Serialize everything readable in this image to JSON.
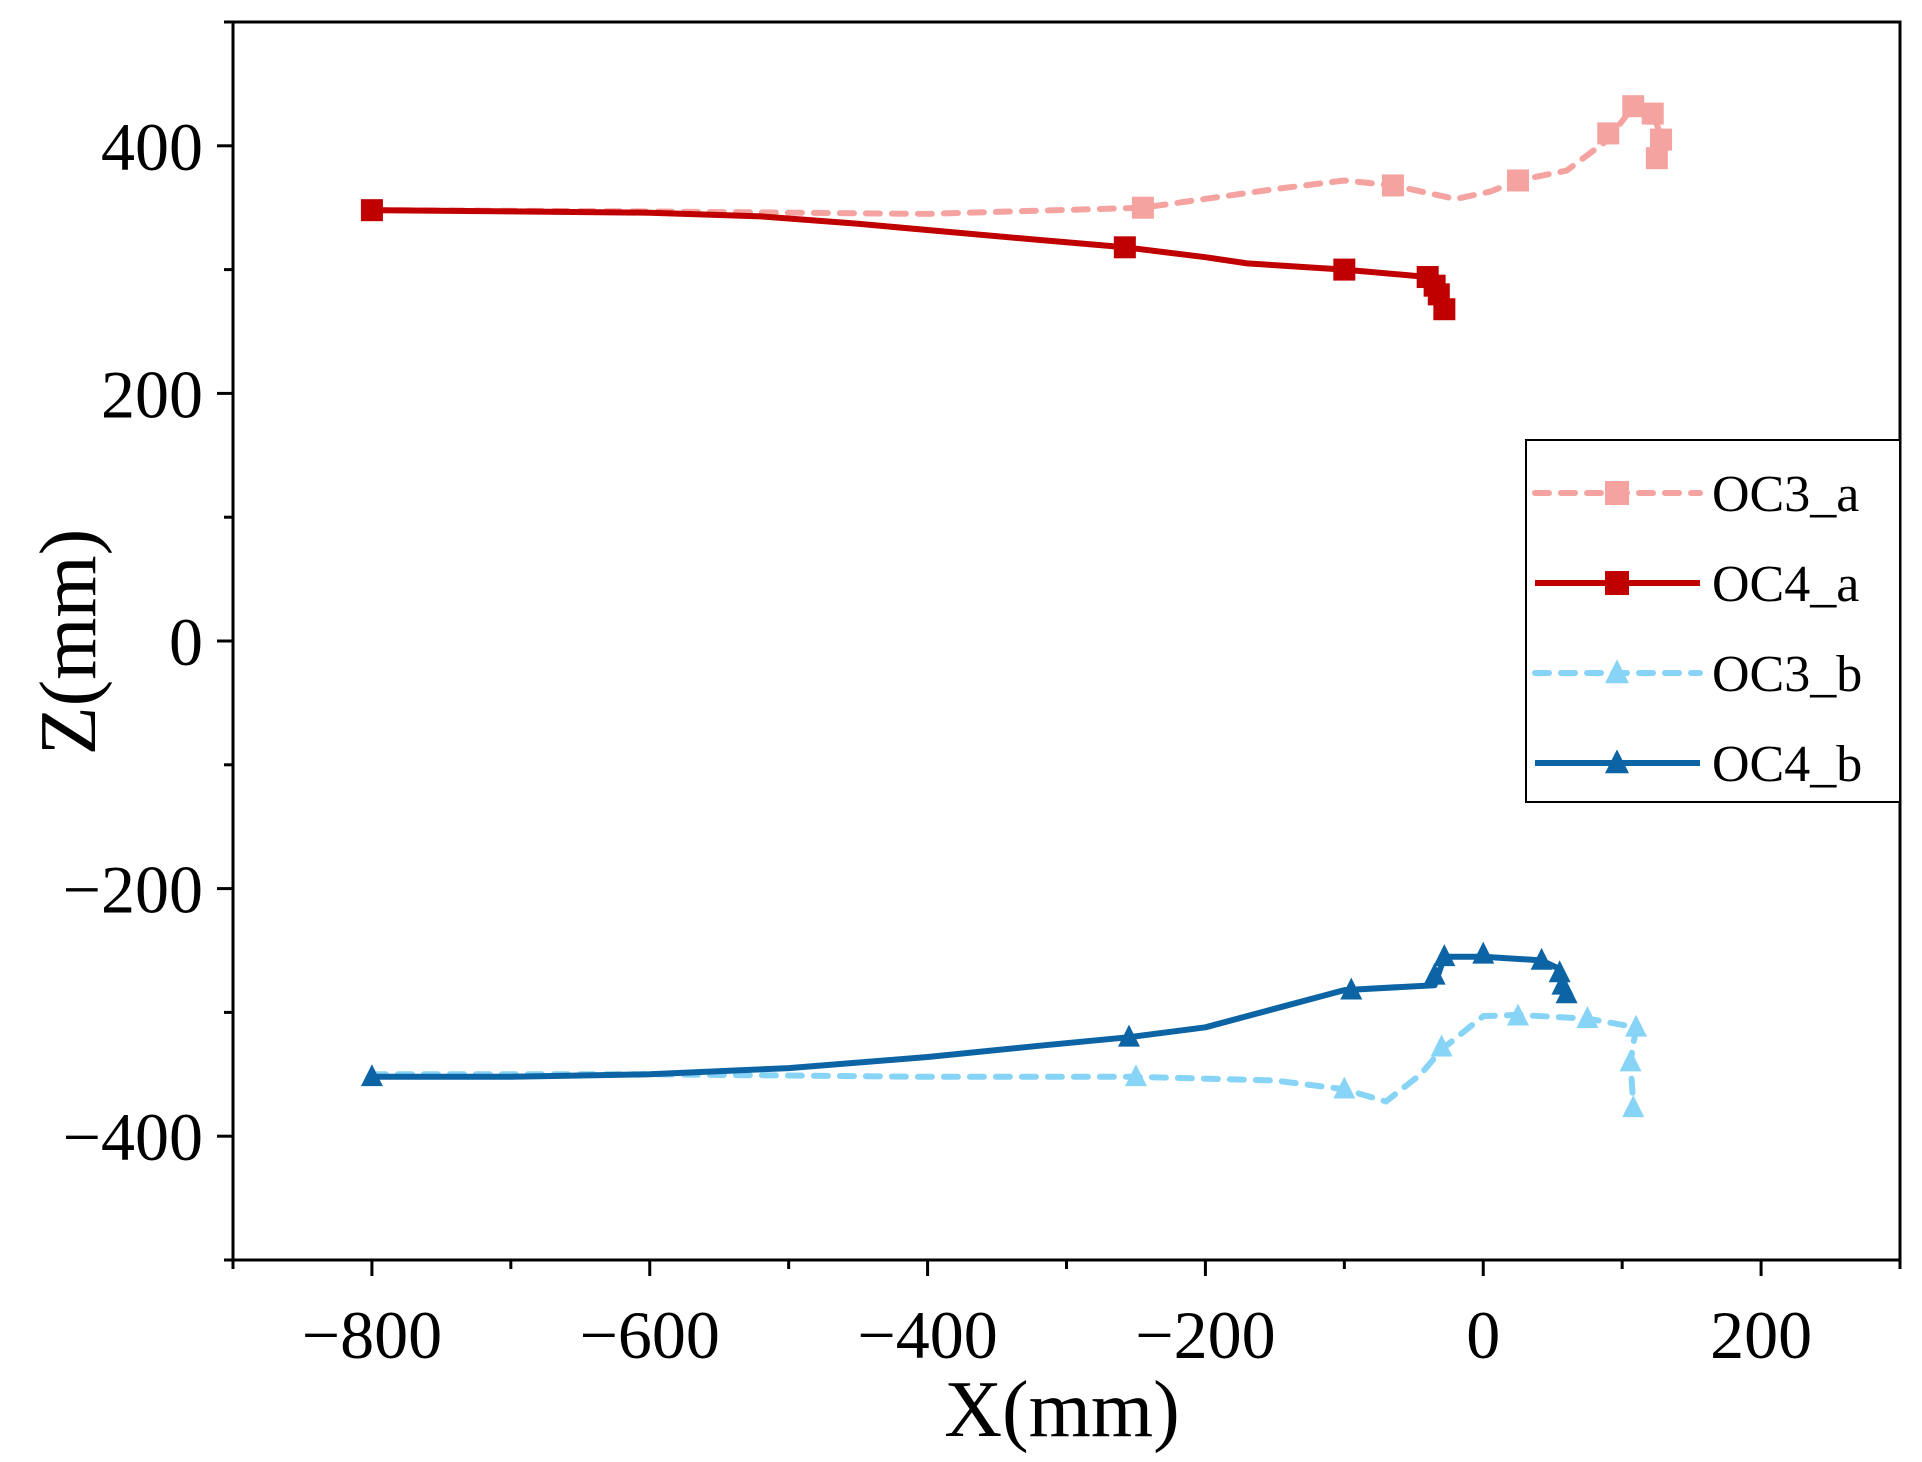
{
  "chart_data": {
    "type": "line",
    "title": "",
    "xlabel": "X(mm)",
    "ylabel": "Z(mm)",
    "xlim": [
      -900,
      300
    ],
    "ylim": [
      -500,
      500
    ],
    "x_ticks": [
      -800,
      -600,
      -400,
      -200,
      0,
      200
    ],
    "x_tick_labels": [
      "−800",
      "−600",
      "−400",
      "−200",
      "0",
      "200"
    ],
    "y_ticks": [
      -400,
      -200,
      0,
      200,
      400
    ],
    "y_tick_labels": [
      "−400",
      "−200",
      "0",
      "200",
      "400"
    ],
    "grid": false,
    "legend_position": "right",
    "series": [
      {
        "name": "OC3_a",
        "color": "#f4a3a0",
        "dashed": true,
        "marker": "square",
        "line": [
          [
            -800,
            348
          ],
          [
            -600,
            347
          ],
          [
            -400,
            345
          ],
          [
            -245,
            350
          ],
          [
            -150,
            365
          ],
          [
            -100,
            372
          ],
          [
            -65,
            368
          ],
          [
            -20,
            357
          ],
          [
            5,
            363
          ],
          [
            25,
            372
          ],
          [
            60,
            380
          ],
          [
            90,
            405
          ],
          [
            108,
            432
          ],
          [
            122,
            426
          ],
          [
            128,
            408
          ],
          [
            125,
            390
          ]
        ],
        "markers": [
          [
            -245,
            350
          ],
          [
            -65,
            368
          ],
          [
            25,
            372
          ],
          [
            90,
            410
          ],
          [
            108,
            432
          ],
          [
            122,
            426
          ],
          [
            128,
            405
          ],
          [
            125,
            390
          ]
        ]
      },
      {
        "name": "OC4_a",
        "color": "#c00000",
        "dashed": false,
        "marker": "square",
        "line": [
          [
            -800,
            348
          ],
          [
            -700,
            347
          ],
          [
            -600,
            346
          ],
          [
            -520,
            343
          ],
          [
            -450,
            337
          ],
          [
            -380,
            330
          ],
          [
            -320,
            324
          ],
          [
            -258,
            318
          ],
          [
            -200,
            310
          ],
          [
            -170,
            305
          ],
          [
            -100,
            300
          ],
          [
            -40,
            294
          ],
          [
            -35,
            290
          ],
          [
            -32,
            283
          ],
          [
            -30,
            274
          ],
          [
            -28,
            268
          ]
        ],
        "markers": [
          [
            -800,
            348
          ],
          [
            -258,
            318
          ],
          [
            -100,
            300
          ],
          [
            -40,
            294
          ],
          [
            -35,
            287
          ],
          [
            -32,
            280
          ],
          [
            -28,
            268
          ]
        ]
      },
      {
        "name": "OC3_b",
        "color": "#87d4f7",
        "dashed": true,
        "marker": "triangle",
        "line": [
          [
            -800,
            -350
          ],
          [
            -600,
            -350
          ],
          [
            -400,
            -352
          ],
          [
            -250,
            -352
          ],
          [
            -150,
            -355
          ],
          [
            -100,
            -362
          ],
          [
            -70,
            -372
          ],
          [
            -45,
            -350
          ],
          [
            -30,
            -330
          ],
          [
            0,
            -303
          ],
          [
            25,
            -302
          ],
          [
            75,
            -305
          ],
          [
            110,
            -312
          ],
          [
            106,
            -340
          ],
          [
            108,
            -375
          ]
        ],
        "markers": [
          [
            -250,
            -352
          ],
          [
            -100,
            -362
          ],
          [
            -30,
            -328
          ],
          [
            25,
            -303
          ],
          [
            75,
            -305
          ],
          [
            110,
            -312
          ],
          [
            106,
            -340
          ],
          [
            108,
            -377
          ]
        ]
      },
      {
        "name": "OC4_b",
        "color": "#0c64a5",
        "dashed": false,
        "marker": "triangle",
        "line": [
          [
            -800,
            -352
          ],
          [
            -700,
            -352
          ],
          [
            -600,
            -350
          ],
          [
            -500,
            -345
          ],
          [
            -400,
            -336
          ],
          [
            -320,
            -327
          ],
          [
            -255,
            -320
          ],
          [
            -200,
            -312
          ],
          [
            -150,
            -297
          ],
          [
            -100,
            -282
          ],
          [
            -35,
            -278
          ],
          [
            -28,
            -255
          ],
          [
            0,
            -255
          ],
          [
            42,
            -258
          ],
          [
            55,
            -265
          ],
          [
            57,
            -278
          ],
          [
            60,
            -285
          ]
        ],
        "markers": [
          [
            -800,
            -352
          ],
          [
            -255,
            -320
          ],
          [
            -95,
            -282
          ],
          [
            -35,
            -270
          ],
          [
            -28,
            -255
          ],
          [
            0,
            -253
          ],
          [
            42,
            -258
          ],
          [
            55,
            -268
          ],
          [
            57,
            -278
          ],
          [
            60,
            -285
          ]
        ]
      }
    ]
  }
}
